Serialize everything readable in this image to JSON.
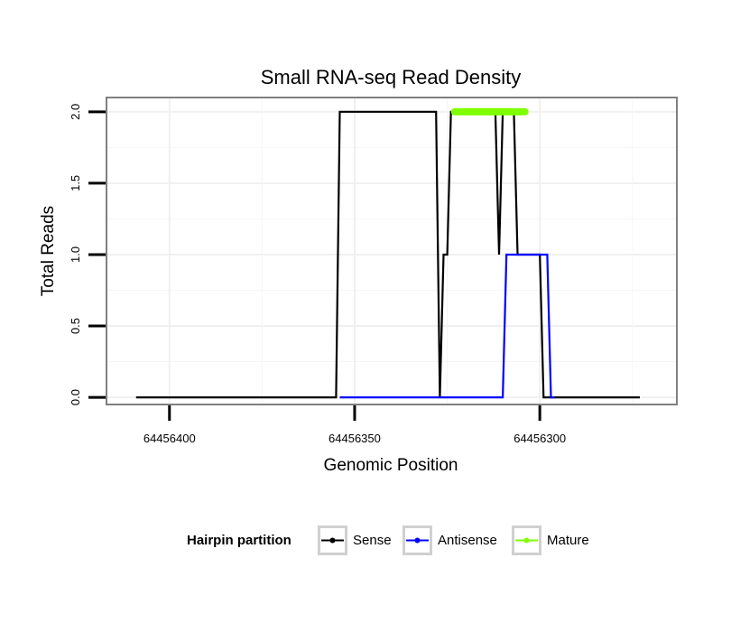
{
  "chart_data": {
    "type": "line",
    "title": "Small RNA-seq Read Density",
    "xlabel": "Genomic Position",
    "ylabel": "Total Reads",
    "xlim": [
      64456417,
      64456263
    ],
    "x_reversed": true,
    "ylim": [
      -0.05,
      2.1
    ],
    "x_ticks": [
      64456400,
      64456350,
      64456300
    ],
    "x_tick_labels": [
      "64456400",
      "64456350",
      "64456300"
    ],
    "y_ticks": [
      0,
      0.5,
      1,
      1.5,
      2
    ],
    "y_tick_labels": [
      "0.0",
      "0.5",
      "1.0",
      "1.5",
      "2.0"
    ],
    "grid": true,
    "legend": {
      "title": "Hairpin partition",
      "placement": "bottom",
      "entries": [
        "Sense",
        "Antisense",
        "Mature"
      ]
    },
    "series": [
      {
        "name": "Sense",
        "color": "#000000",
        "x": [
          64456409,
          64456355,
          64456354,
          64456328,
          64456327,
          64456326,
          64456325,
          64456324,
          64456323,
          64456322,
          64456321,
          64456320,
          64456319,
          64456318,
          64456317,
          64456316,
          64456315,
          64456314,
          64456313,
          64456312,
          64456311,
          64456310,
          64456309,
          64456308,
          64456307,
          64456306,
          64456305,
          64456304,
          64456303,
          64456302,
          64456301,
          64456300,
          64456299,
          64456273
        ],
        "y": [
          0,
          0,
          2,
          2,
          0,
          1,
          1,
          2,
          2,
          2,
          2,
          2,
          2,
          2,
          2,
          2,
          2,
          2,
          2,
          2,
          1,
          2,
          2,
          2,
          2,
          1,
          1,
          1,
          1,
          1,
          1,
          1,
          0,
          0
        ]
      },
      {
        "name": "Antisense",
        "color": "#0000ff",
        "x": [
          64456354,
          64456310,
          64456309,
          64456298,
          64456297,
          64456296
        ],
        "y": [
          0,
          0,
          1,
          1,
          0,
          0
        ]
      },
      {
        "name": "Mature",
        "color": "#7fff00",
        "x": [
          64456323,
          64456304
        ],
        "y": [
          2,
          2
        ]
      }
    ]
  }
}
